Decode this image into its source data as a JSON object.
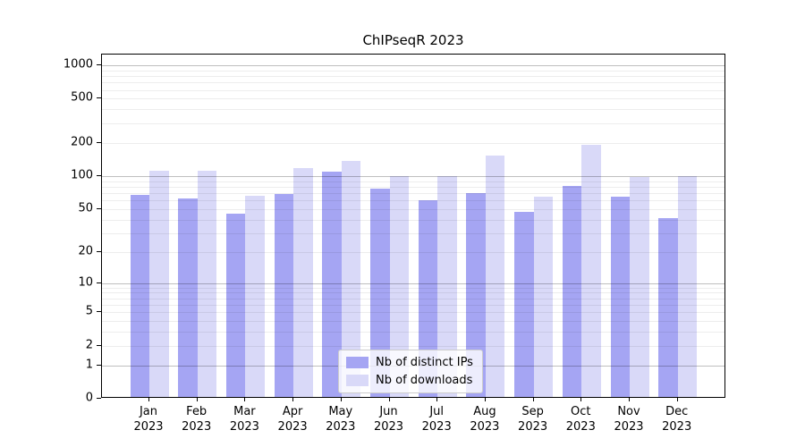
{
  "chart_data": {
    "type": "bar",
    "title": "ChIPseqR 2023",
    "categories": [
      "Jan 2023",
      "Feb 2023",
      "Mar 2023",
      "Apr 2023",
      "May 2023",
      "Jun 2023",
      "Jul 2023",
      "Aug 2023",
      "Sep 2023",
      "Oct 2023",
      "Nov 2023",
      "Dec 2023"
    ],
    "series": [
      {
        "name": "Nb of distinct IPs",
        "color": "#a5a5f3",
        "values": [
          65,
          60,
          44,
          66,
          105,
          74,
          58,
          67,
          45,
          78,
          62,
          40
        ]
      },
      {
        "name": "Nb of downloads",
        "color": "#d9d9f8",
        "values": [
          108,
          108,
          64,
          113,
          132,
          97,
          97,
          148,
          62,
          184,
          94,
          97
        ]
      }
    ],
    "y_ticks": [
      0,
      1,
      2,
      5,
      10,
      20,
      50,
      100,
      200,
      500,
      1000
    ],
    "ylabel": "",
    "xlabel": "",
    "scale": "log1p",
    "ylim": [
      0,
      1252
    ],
    "grid": "on",
    "legend_position": "inside-bottom-center"
  }
}
